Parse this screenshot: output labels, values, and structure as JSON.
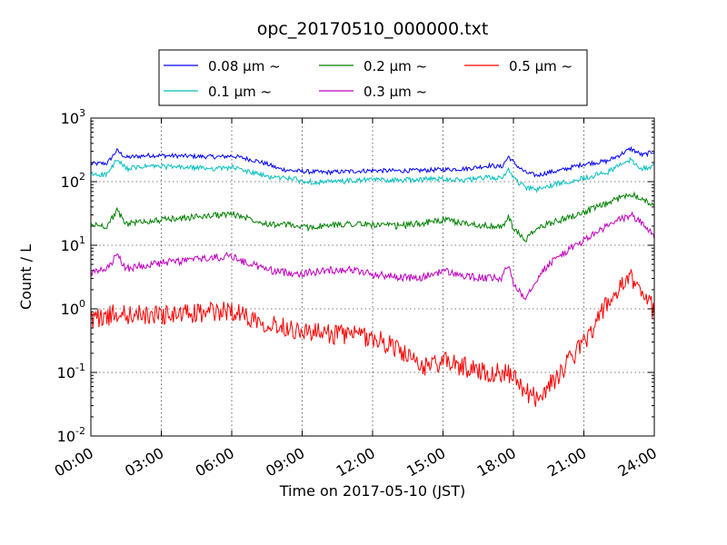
{
  "chart_data": {
    "type": "line",
    "title": "opc_20170510_000000.txt",
    "xlabel": "Time on 2017-05-10 (JST)",
    "ylabel": "Count / L",
    "y_scale": "log",
    "ylim": [
      0.01,
      1000
    ],
    "xlim": [
      "00:00",
      "24:00"
    ],
    "grid": "dotted",
    "legend_placement": "top-center, above plot",
    "x_ticks": [
      "00:00",
      "03:00",
      "06:00",
      "09:00",
      "12:00",
      "15:00",
      "18:00",
      "21:00",
      "24:00"
    ],
    "y_ticks": [
      {
        "base": "10",
        "exp": "-2"
      },
      {
        "base": "10",
        "exp": "-1"
      },
      {
        "base": "10",
        "exp": "0"
      },
      {
        "base": "10",
        "exp": "1"
      },
      {
        "base": "10",
        "exp": "2"
      },
      {
        "base": "10",
        "exp": "3"
      }
    ],
    "series": [
      {
        "name": "0.08 μm ~",
        "color": "#0000ff",
        "x_hours": [
          0,
          0.7,
          1.1,
          1.5,
          2.5,
          3.5,
          4.5,
          5.5,
          6,
          6.5,
          7,
          7.5,
          8,
          8.5,
          9,
          10,
          11,
          12,
          13,
          14,
          15,
          16,
          17,
          17.5,
          17.8,
          18,
          18.5,
          19,
          19.5,
          20,
          21,
          22,
          22.5,
          23,
          23.5,
          24
        ],
        "values": [
          190,
          195,
          310,
          240,
          260,
          255,
          250,
          245,
          255,
          235,
          215,
          190,
          160,
          150,
          145,
          140,
          145,
          150,
          148,
          150,
          155,
          160,
          180,
          170,
          250,
          200,
          140,
          125,
          140,
          150,
          190,
          210,
          260,
          330,
          260,
          300
        ]
      },
      {
        "name": "0.1 μm ~",
        "color": "#00bfbf",
        "x_hours": [
          0,
          0.7,
          1.1,
          1.5,
          2.5,
          3.5,
          4.5,
          5.5,
          6,
          6.5,
          7,
          7.5,
          8,
          8.5,
          9,
          10,
          11,
          12,
          13,
          14,
          15,
          16,
          17,
          17.5,
          17.8,
          18,
          18.5,
          19,
          19.5,
          20,
          21,
          22,
          22.5,
          23,
          23.5,
          24
        ],
        "values": [
          130,
          130,
          220,
          160,
          175,
          170,
          165,
          160,
          170,
          150,
          135,
          120,
          115,
          115,
          100,
          98,
          102,
          108,
          105,
          108,
          112,
          105,
          118,
          110,
          160,
          115,
          80,
          75,
          85,
          95,
          115,
          140,
          180,
          220,
          160,
          175
        ]
      },
      {
        "name": "0.2 μm ~",
        "color": "#008000",
        "x_hours": [
          0,
          0.7,
          1.1,
          1.5,
          2.5,
          3.5,
          4.5,
          5.5,
          6,
          6.5,
          7,
          7.5,
          8,
          8.5,
          9,
          10,
          11,
          12,
          13,
          14,
          15,
          16,
          17,
          17.5,
          17.8,
          18,
          18.5,
          19,
          19.5,
          20,
          21,
          22,
          22.5,
          23,
          23.5,
          24
        ],
        "values": [
          21,
          20,
          35,
          22,
          24,
          26,
          28,
          30,
          31,
          28,
          25,
          22,
          21,
          21,
          19,
          20,
          22,
          21,
          20,
          22,
          25,
          22,
          20,
          19,
          28,
          18,
          12,
          18,
          22,
          25,
          33,
          45,
          55,
          65,
          55,
          40
        ]
      },
      {
        "name": "0.3 μm ~",
        "color": "#bf00bf",
        "x_hours": [
          0,
          0.7,
          1.1,
          1.5,
          2.5,
          3.5,
          4.5,
          5.5,
          6,
          6.5,
          7,
          7.5,
          8,
          8.5,
          9,
          10,
          11,
          12,
          13,
          14,
          15,
          16,
          17,
          17.5,
          17.8,
          18,
          18.5,
          19,
          19.5,
          20,
          21,
          22,
          22.5,
          23,
          23.5,
          24
        ],
        "values": [
          3.6,
          4.2,
          7,
          4.3,
          5,
          5.5,
          6,
          6.5,
          6.8,
          5.5,
          4.8,
          4.2,
          3.8,
          3.7,
          3.6,
          4,
          4.2,
          3.5,
          3.2,
          3,
          4,
          3.2,
          3,
          3,
          5,
          2.5,
          1.5,
          3,
          5,
          7,
          12,
          20,
          25,
          30,
          22,
          14
        ]
      },
      {
        "name": "0.5 μm ~",
        "color": "#ff0000",
        "x_hours": [
          0,
          0.7,
          1.1,
          1.5,
          2.5,
          3.5,
          4.5,
          5.5,
          6,
          6.5,
          7,
          7.5,
          8,
          8.5,
          9,
          10,
          11,
          12,
          13,
          14,
          15,
          16,
          17,
          17.5,
          17.8,
          18,
          18.5,
          19,
          19.5,
          20,
          21,
          22,
          22.5,
          23,
          23.5,
          24
        ],
        "values": [
          0.7,
          0.75,
          0.85,
          0.8,
          0.8,
          0.8,
          0.85,
          0.9,
          0.95,
          0.8,
          0.7,
          0.6,
          0.55,
          0.5,
          0.45,
          0.4,
          0.4,
          0.35,
          0.25,
          0.12,
          0.15,
          0.12,
          0.1,
          0.1,
          0.1,
          0.08,
          0.05,
          0.04,
          0.06,
          0.1,
          0.3,
          1.2,
          2,
          3,
          2,
          0.9
        ]
      }
    ]
  }
}
